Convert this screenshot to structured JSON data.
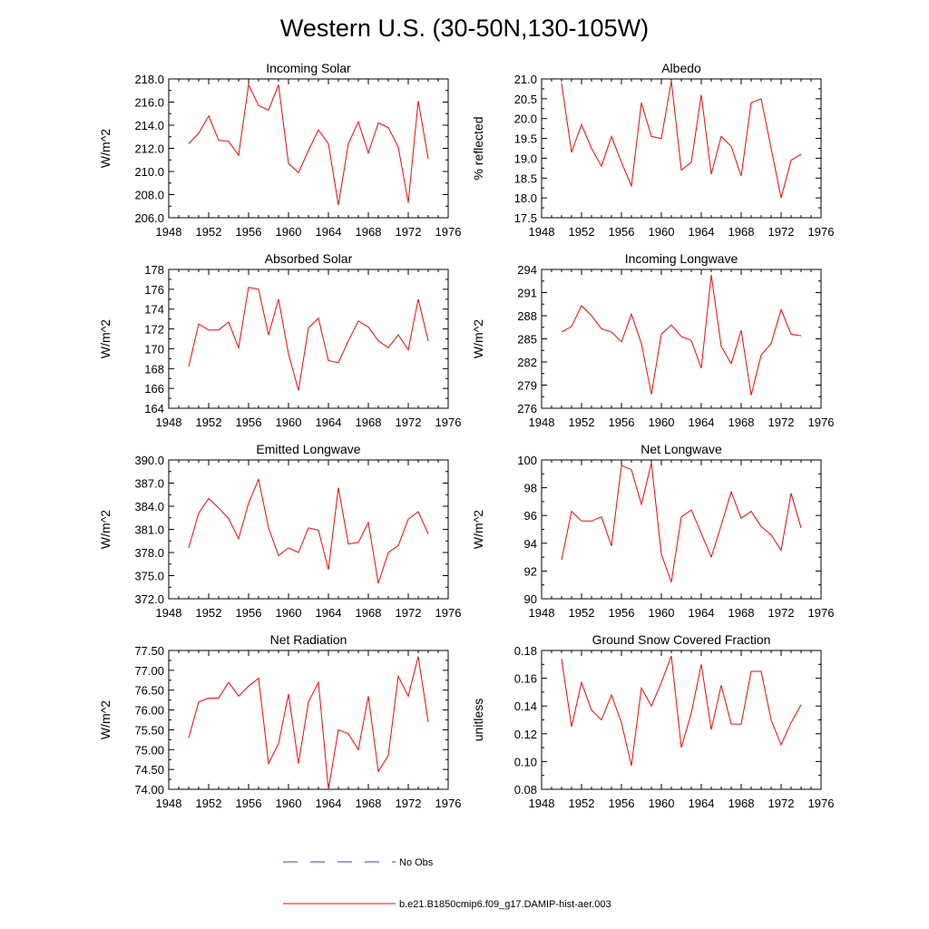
{
  "figure": {
    "title": "Western U.S. (30-50N,130-105W)",
    "legend": {
      "no_obs_label": "No Obs",
      "model_label": "b.e21.B1850cmip6.f09_g17.DAMIP-hist-aer.003",
      "no_obs_color": "#3a3aff",
      "model_color": "#ff0000"
    }
  },
  "chart_data": [
    {
      "type": "line",
      "title": "Incoming Solar",
      "ylabel": "W/m^2",
      "xlim": [
        1948,
        1976
      ],
      "ylim": [
        206,
        218
      ],
      "xticks": [
        "1948",
        "1952",
        "1956",
        "1960",
        "1964",
        "1968",
        "1972",
        "1976"
      ],
      "yticks": [
        "206.0",
        "208.0",
        "210.0",
        "212.0",
        "214.0",
        "216.0",
        "218.0"
      ],
      "x": [
        1950,
        1951,
        1952,
        1953,
        1954,
        1955,
        1956,
        1957,
        1958,
        1959,
        1960,
        1961,
        1962,
        1963,
        1964,
        1965,
        1966,
        1967,
        1968,
        1969,
        1970,
        1971,
        1972,
        1973,
        1974
      ],
      "series": [
        {
          "values": [
            212.4,
            213.3,
            214.8,
            212.7,
            212.6,
            211.4,
            217.5,
            215.7,
            215.3,
            217.5,
            210.7,
            209.9,
            211.8,
            213.6,
            212.4,
            207.1,
            212.4,
            214.3,
            211.6,
            214.2,
            213.8,
            212.1,
            207.3,
            216.1,
            211.1
          ],
          "color": "#ff0000"
        }
      ]
    },
    {
      "type": "line",
      "title": "Albedo",
      "ylabel": "% reflected",
      "xlim": [
        1948,
        1976
      ],
      "ylim": [
        17.5,
        21.0
      ],
      "xticks": [
        "1948",
        "1952",
        "1956",
        "1960",
        "1964",
        "1968",
        "1972",
        "1976"
      ],
      "yticks": [
        "17.5",
        "18.0",
        "18.5",
        "19.0",
        "19.5",
        "20.0",
        "20.5",
        "21.0"
      ],
      "x": [
        1950,
        1951,
        1952,
        1953,
        1954,
        1955,
        1956,
        1957,
        1958,
        1959,
        1960,
        1961,
        1962,
        1963,
        1964,
        1965,
        1966,
        1967,
        1968,
        1969,
        1970,
        1971,
        1972,
        1973,
        1974
      ],
      "series": [
        {
          "values": [
            20.9,
            19.15,
            19.85,
            19.25,
            18.8,
            19.55,
            18.9,
            18.3,
            20.4,
            19.55,
            19.5,
            20.95,
            18.7,
            18.9,
            20.6,
            18.6,
            19.55,
            19.3,
            18.55,
            20.4,
            20.5,
            19.25,
            18.0,
            18.95,
            19.1
          ],
          "color": "#ff0000"
        }
      ]
    },
    {
      "type": "line",
      "title": "Absorbed Solar",
      "ylabel": "W/m^2",
      "xlim": [
        1948,
        1976
      ],
      "ylim": [
        164,
        178
      ],
      "xticks": [
        "1948",
        "1952",
        "1956",
        "1960",
        "1964",
        "1968",
        "1972",
        "1976"
      ],
      "yticks": [
        "164",
        "166",
        "168",
        "170",
        "172",
        "174",
        "176",
        "178"
      ],
      "x": [
        1950,
        1951,
        1952,
        1953,
        1954,
        1955,
        1956,
        1957,
        1958,
        1959,
        1960,
        1961,
        1962,
        1963,
        1964,
        1965,
        1966,
        1967,
        1968,
        1969,
        1970,
        1971,
        1972,
        1973,
        1974
      ],
      "series": [
        {
          "values": [
            168.2,
            172.5,
            171.9,
            171.9,
            172.7,
            170.1,
            176.2,
            176.0,
            171.4,
            175.0,
            169.5,
            165.8,
            172.1,
            173.1,
            168.8,
            168.6,
            170.8,
            172.8,
            172.2,
            170.8,
            170.1,
            171.4,
            169.9,
            175.0,
            170.8
          ],
          "color": "#ff0000"
        }
      ]
    },
    {
      "type": "line",
      "title": "Incoming Longwave",
      "ylabel": "W/m^2",
      "xlim": [
        1948,
        1976
      ],
      "ylim": [
        276,
        294
      ],
      "xticks": [
        "1948",
        "1952",
        "1956",
        "1960",
        "1964",
        "1968",
        "1972",
        "1976"
      ],
      "yticks": [
        "276",
        "279",
        "282",
        "285",
        "288",
        "291",
        "294"
      ],
      "x": [
        1950,
        1951,
        1952,
        1953,
        1954,
        1955,
        1956,
        1957,
        1958,
        1959,
        1960,
        1961,
        1962,
        1963,
        1964,
        1965,
        1966,
        1967,
        1968,
        1969,
        1970,
        1971,
        1972,
        1973,
        1974
      ],
      "series": [
        {
          "values": [
            285.9,
            286.6,
            289.3,
            288.0,
            286.3,
            285.9,
            284.6,
            288.2,
            284.4,
            277.8,
            285.6,
            286.8,
            285.3,
            284.8,
            281.2,
            293.3,
            284.0,
            281.8,
            286.1,
            277.7,
            282.9,
            284.4,
            288.8,
            285.6,
            285.4
          ],
          "color": "#ff0000"
        }
      ]
    },
    {
      "type": "line",
      "title": "Emitted Longwave",
      "ylabel": "W/m^2",
      "xlim": [
        1948,
        1976
      ],
      "ylim": [
        372,
        390
      ],
      "xticks": [
        "1948",
        "1952",
        "1956",
        "1960",
        "1964",
        "1968",
        "1972",
        "1976"
      ],
      "yticks": [
        "372.0",
        "375.0",
        "378.0",
        "381.0",
        "384.0",
        "387.0",
        "390.0"
      ],
      "x": [
        1950,
        1951,
        1952,
        1953,
        1954,
        1955,
        1956,
        1957,
        1958,
        1959,
        1960,
        1961,
        1962,
        1963,
        1964,
        1965,
        1966,
        1967,
        1968,
        1969,
        1970,
        1971,
        1972,
        1973,
        1974
      ],
      "series": [
        {
          "values": [
            378.6,
            383.1,
            385.0,
            383.8,
            382.4,
            379.8,
            384.4,
            387.5,
            381.2,
            377.6,
            378.6,
            378.0,
            381.2,
            380.9,
            375.8,
            386.4,
            379.1,
            379.3,
            381.9,
            374.0,
            378.0,
            378.9,
            382.3,
            383.3,
            380.4
          ],
          "color": "#ff0000"
        }
      ]
    },
    {
      "type": "line",
      "title": "Net Longwave",
      "ylabel": "W/m^2",
      "xlim": [
        1948,
        1976
      ],
      "ylim": [
        90,
        100
      ],
      "xticks": [
        "1948",
        "1952",
        "1956",
        "1960",
        "1964",
        "1968",
        "1972",
        "1976"
      ],
      "yticks": [
        "90",
        "92",
        "94",
        "96",
        "98",
        "100"
      ],
      "x": [
        1950,
        1951,
        1952,
        1953,
        1954,
        1955,
        1956,
        1957,
        1958,
        1959,
        1960,
        1961,
        1962,
        1963,
        1964,
        1965,
        1966,
        1967,
        1968,
        1969,
        1970,
        1971,
        1972,
        1973,
        1974
      ],
      "series": [
        {
          "values": [
            92.8,
            96.3,
            95.6,
            95.6,
            95.9,
            93.8,
            99.6,
            99.3,
            96.8,
            99.8,
            93.2,
            91.2,
            95.9,
            96.4,
            94.7,
            93.0,
            95.3,
            97.7,
            95.8,
            96.3,
            95.2,
            94.6,
            93.5,
            97.6,
            95.1
          ],
          "color": "#ff0000"
        }
      ]
    },
    {
      "type": "line",
      "title": "Net Radiation",
      "ylabel": "W/m^2",
      "xlim": [
        1948,
        1976
      ],
      "ylim": [
        74.0,
        77.5
      ],
      "xticks": [
        "1948",
        "1952",
        "1956",
        "1960",
        "1964",
        "1968",
        "1972",
        "1976"
      ],
      "yticks": [
        "74.00",
        "74.50",
        "75.00",
        "75.50",
        "76.00",
        "76.50",
        "77.00",
        "77.50"
      ],
      "x": [
        1950,
        1951,
        1952,
        1953,
        1954,
        1955,
        1956,
        1957,
        1958,
        1959,
        1960,
        1961,
        1962,
        1963,
        1964,
        1965,
        1966,
        1967,
        1968,
        1969,
        1970,
        1971,
        1972,
        1973,
        1974
      ],
      "series": [
        {
          "values": [
            75.3,
            76.2,
            76.3,
            76.3,
            76.7,
            76.35,
            76.6,
            76.8,
            74.65,
            75.15,
            76.4,
            74.65,
            76.2,
            76.7,
            74.0,
            75.5,
            75.4,
            75.0,
            76.35,
            74.45,
            74.85,
            76.85,
            76.35,
            77.35,
            75.7
          ],
          "color": "#ff0000"
        }
      ]
    },
    {
      "type": "line",
      "title": "Ground Snow Covered Fraction",
      "ylabel": "unitless",
      "xlim": [
        1948,
        1976
      ],
      "ylim": [
        0.08,
        0.18
      ],
      "xticks": [
        "1948",
        "1952",
        "1956",
        "1960",
        "1964",
        "1968",
        "1972",
        "1976"
      ],
      "yticks": [
        "0.08",
        "0.10",
        "0.12",
        "0.14",
        "0.16",
        "0.18"
      ],
      "x": [
        1950,
        1951,
        1952,
        1953,
        1954,
        1955,
        1956,
        1957,
        1958,
        1959,
        1960,
        1961,
        1962,
        1963,
        1964,
        1965,
        1966,
        1967,
        1968,
        1969,
        1970,
        1971,
        1972,
        1973,
        1974
      ],
      "series": [
        {
          "values": [
            0.174,
            0.125,
            0.157,
            0.137,
            0.13,
            0.148,
            0.128,
            0.097,
            0.153,
            0.14,
            0.157,
            0.176,
            0.11,
            0.135,
            0.17,
            0.123,
            0.155,
            0.127,
            0.127,
            0.165,
            0.165,
            0.13,
            0.112,
            0.128,
            0.141
          ],
          "color": "#ff0000"
        }
      ]
    }
  ]
}
